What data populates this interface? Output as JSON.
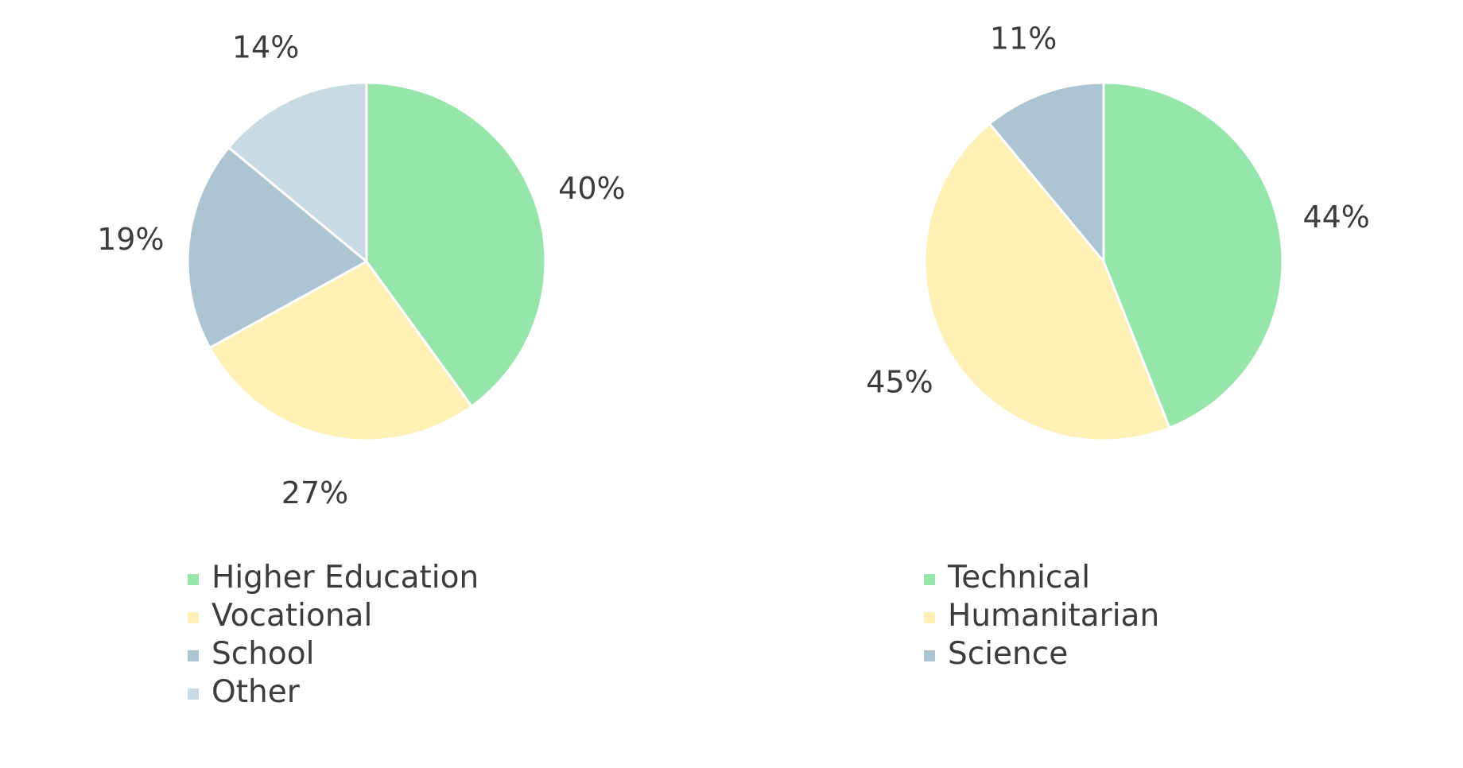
{
  "chart_data": [
    {
      "type": "pie",
      "title": "",
      "categories": [
        "Higher Education",
        "Vocational",
        "School",
        "Other"
      ],
      "values": [
        40,
        27,
        19,
        14
      ],
      "value_labels": [
        "40%",
        "27%",
        "19%",
        "14%"
      ],
      "colors": [
        "#96e5aa",
        "#fff0b6",
        "#adc4d2",
        "#c8dbe4"
      ],
      "legend_position": "bottom",
      "start_angle": "12 o'clock",
      "direction": "clockwise"
    },
    {
      "type": "pie",
      "title": "",
      "categories": [
        "Technical",
        "Humanitarian",
        "Science"
      ],
      "values": [
        44,
        45,
        11
      ],
      "value_labels": [
        "44%",
        "45%",
        "11%"
      ],
      "colors": [
        "#96e5aa",
        "#fff0b6",
        "#adc4d2"
      ],
      "legend_position": "bottom",
      "start_angle": "12 o'clock",
      "direction": "clockwise"
    }
  ]
}
